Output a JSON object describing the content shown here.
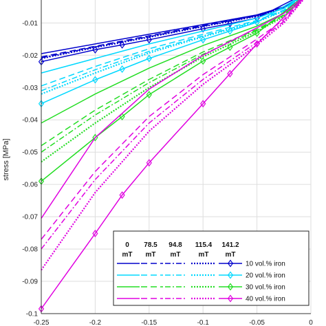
{
  "chart_data": {
    "type": "line",
    "xlabel": "",
    "ylabel": "stress [MPa]",
    "xlim": [
      -0.25,
      0.0
    ],
    "ylim": [
      -0.1,
      0.0
    ],
    "x_ticks": [
      "-0.25",
      "-0.2",
      "-0.15",
      "-0.1",
      "-0.05",
      "0"
    ],
    "y_ticks": [
      "-0.01",
      "-0.02",
      "-0.03",
      "-0.04",
      "-0.05",
      "-0.06",
      "-0.07",
      "-0.08",
      "-0.09",
      "-0.1"
    ],
    "grid": true,
    "legend": {
      "placement": "bottom-right",
      "field_header": [
        "0",
        "78.5",
        "94.8",
        "115.4",
        "141.2"
      ],
      "field_unit": [
        "mT",
        "mT",
        "mT",
        "mT",
        "mT"
      ],
      "styles": [
        "solid",
        "dashed",
        "dashdot",
        "dotted",
        "solid-diamond"
      ],
      "rows": [
        {
          "label": "10 vol.% iron",
          "color": "#0000cc"
        },
        {
          "label": "20 vol.% iron",
          "color": "#00d8ff"
        },
        {
          "label": "30 vol.% iron",
          "color": "#22dd22"
        },
        {
          "label": "40 vol.% iron",
          "color": "#e000e0"
        }
      ]
    },
    "markers_x": [
      -0.25,
      -0.2,
      -0.175,
      -0.15,
      -0.1,
      -0.075,
      -0.05
    ],
    "series": [
      {
        "group": 0,
        "style": "solid",
        "x": [
          -0.25,
          -0.2,
          -0.15,
          -0.1,
          -0.05,
          -0.025,
          0
        ],
        "y": [
          -0.0195,
          -0.0165,
          -0.0135,
          -0.0105,
          -0.0075,
          -0.005,
          0
        ]
      },
      {
        "group": 0,
        "style": "dashed",
        "x": [
          -0.25,
          -0.2,
          -0.15,
          -0.1,
          -0.05,
          -0.025,
          0
        ],
        "y": [
          -0.0205,
          -0.0172,
          -0.014,
          -0.0108,
          -0.0077,
          -0.0052,
          0
        ]
      },
      {
        "group": 0,
        "style": "dashdot",
        "x": [
          -0.25,
          -0.2,
          -0.15,
          -0.1,
          -0.05,
          -0.025,
          0
        ],
        "y": [
          -0.0208,
          -0.0174,
          -0.0142,
          -0.011,
          -0.0078,
          -0.0052,
          0
        ]
      },
      {
        "group": 0,
        "style": "dotted",
        "x": [
          -0.25,
          -0.2,
          -0.15,
          -0.1,
          -0.05,
          -0.025,
          0
        ],
        "y": [
          -0.021,
          -0.0176,
          -0.0144,
          -0.0111,
          -0.0079,
          -0.0053,
          0
        ]
      },
      {
        "group": 0,
        "style": "solid-diamond",
        "x": [
          -0.25,
          -0.2,
          -0.175,
          -0.15,
          -0.1,
          -0.075,
          -0.05,
          0
        ],
        "y": [
          -0.022,
          -0.0183,
          -0.0168,
          -0.0152,
          -0.0118,
          -0.0102,
          -0.0085,
          0
        ]
      },
      {
        "group": 1,
        "style": "solid",
        "x": [
          -0.25,
          -0.2,
          -0.15,
          -0.1,
          -0.05,
          -0.025,
          0
        ],
        "y": [
          -0.0255,
          -0.021,
          -0.0165,
          -0.0125,
          -0.0085,
          -0.0055,
          0
        ]
      },
      {
        "group": 1,
        "style": "dashed",
        "x": [
          -0.25,
          -0.2,
          -0.15,
          -0.1,
          -0.05,
          -0.025,
          0
        ],
        "y": [
          -0.0295,
          -0.0235,
          -0.018,
          -0.0135,
          -0.0092,
          -0.006,
          0
        ]
      },
      {
        "group": 1,
        "style": "dashdot",
        "x": [
          -0.25,
          -0.2,
          -0.15,
          -0.1,
          -0.05,
          -0.025,
          0
        ],
        "y": [
          -0.031,
          -0.0245,
          -0.0188,
          -0.014,
          -0.0095,
          -0.0062,
          0
        ]
      },
      {
        "group": 1,
        "style": "dotted",
        "x": [
          -0.25,
          -0.2,
          -0.15,
          -0.1,
          -0.05,
          -0.025,
          0
        ],
        "y": [
          -0.032,
          -0.0255,
          -0.0193,
          -0.0143,
          -0.0097,
          -0.0063,
          0
        ]
      },
      {
        "group": 1,
        "style": "solid-diamond",
        "x": [
          -0.25,
          -0.2,
          -0.175,
          -0.15,
          -0.1,
          -0.075,
          -0.05,
          0
        ],
        "y": [
          -0.035,
          -0.0276,
          -0.0243,
          -0.021,
          -0.0152,
          -0.0125,
          -0.0098,
          0
        ]
      },
      {
        "group": 2,
        "style": "solid",
        "x": [
          -0.25,
          -0.2,
          -0.15,
          -0.1,
          -0.05,
          -0.025,
          0
        ],
        "y": [
          -0.041,
          -0.032,
          -0.024,
          -0.017,
          -0.011,
          -0.007,
          0
        ]
      },
      {
        "group": 2,
        "style": "dashed",
        "x": [
          -0.25,
          -0.2,
          -0.15,
          -0.1,
          -0.05,
          -0.025,
          0
        ],
        "y": [
          -0.048,
          -0.037,
          -0.0275,
          -0.019,
          -0.012,
          -0.0075,
          0
        ]
      },
      {
        "group": 2,
        "style": "dashdot",
        "x": [
          -0.25,
          -0.2,
          -0.15,
          -0.1,
          -0.05,
          -0.025,
          0
        ],
        "y": [
          -0.05,
          -0.0385,
          -0.0285,
          -0.0197,
          -0.0123,
          -0.0077,
          0
        ]
      },
      {
        "group": 2,
        "style": "dotted",
        "x": [
          -0.25,
          -0.2,
          -0.15,
          -0.1,
          -0.05,
          -0.025,
          0
        ],
        "y": [
          -0.053,
          -0.041,
          -0.03,
          -0.0205,
          -0.0127,
          -0.008,
          0
        ]
      },
      {
        "group": 2,
        "style": "solid-diamond",
        "x": [
          -0.25,
          -0.2,
          -0.175,
          -0.15,
          -0.1,
          -0.075,
          -0.05,
          0
        ],
        "y": [
          -0.059,
          -0.0455,
          -0.039,
          -0.0322,
          -0.0218,
          -0.0175,
          -0.0132,
          0
        ]
      },
      {
        "group": 3,
        "style": "solid",
        "x": [
          -0.25,
          -0.2,
          -0.15,
          -0.1,
          -0.05,
          -0.025,
          0
        ],
        "y": [
          -0.0705,
          -0.0455,
          -0.0305,
          -0.02,
          -0.0115,
          -0.007,
          0
        ]
      },
      {
        "group": 3,
        "style": "dashed",
        "x": [
          -0.25,
          -0.2,
          -0.15,
          -0.1,
          -0.05,
          -0.025,
          0
        ],
        "y": [
          -0.077,
          -0.056,
          -0.039,
          -0.026,
          -0.015,
          -0.009,
          0
        ]
      },
      {
        "group": 3,
        "style": "dashdot",
        "x": [
          -0.25,
          -0.2,
          -0.15,
          -0.1,
          -0.05,
          -0.025,
          0
        ],
        "y": [
          -0.08,
          -0.0585,
          -0.041,
          -0.0275,
          -0.016,
          -0.0095,
          0
        ]
      },
      {
        "group": 3,
        "style": "dotted",
        "x": [
          -0.25,
          -0.2,
          -0.15,
          -0.1,
          -0.05,
          -0.025,
          0
        ],
        "y": [
          -0.0865,
          -0.0625,
          -0.0435,
          -0.029,
          -0.0168,
          -0.01,
          0
        ]
      },
      {
        "group": 3,
        "style": "solid-diamond",
        "x": [
          -0.25,
          -0.2,
          -0.175,
          -0.15,
          -0.1,
          -0.075,
          -0.05,
          0
        ],
        "y": [
          -0.0985,
          -0.0752,
          -0.0633,
          -0.0533,
          -0.035,
          -0.0257,
          -0.0165,
          0
        ]
      }
    ]
  }
}
